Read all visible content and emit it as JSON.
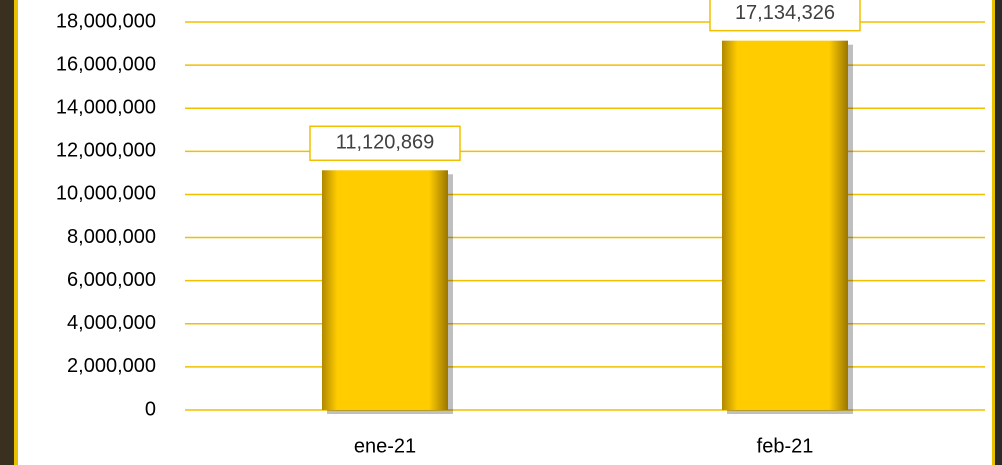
{
  "chart_data": {
    "type": "bar",
    "categories": [
      "ene-21",
      "feb-21"
    ],
    "values": [
      11120869,
      17134326
    ],
    "value_labels": [
      "11,120,869",
      "17,134,326"
    ],
    "color": "#ffcc00",
    "ylim": [
      0,
      18000000
    ],
    "yticks": [
      0,
      {
        "value": 2000000,
        "label": "2,000,000"
      },
      {
        "value": 4000000,
        "label": "4,000,000"
      },
      {
        "value": 6000000,
        "label": "6,000,000"
      },
      {
        "value": 8000000,
        "label": "8,000,000"
      },
      {
        "value": 10000000,
        "label": "10,000,000"
      },
      {
        "value": 12000000,
        "label": "12,000,000"
      },
      {
        "value": 14000000,
        "label": "14,000,000"
      },
      {
        "value": 16000000,
        "label": "16,000,000"
      },
      {
        "value": 18000000,
        "label": "18,000,000"
      }
    ],
    "grid": true
  }
}
